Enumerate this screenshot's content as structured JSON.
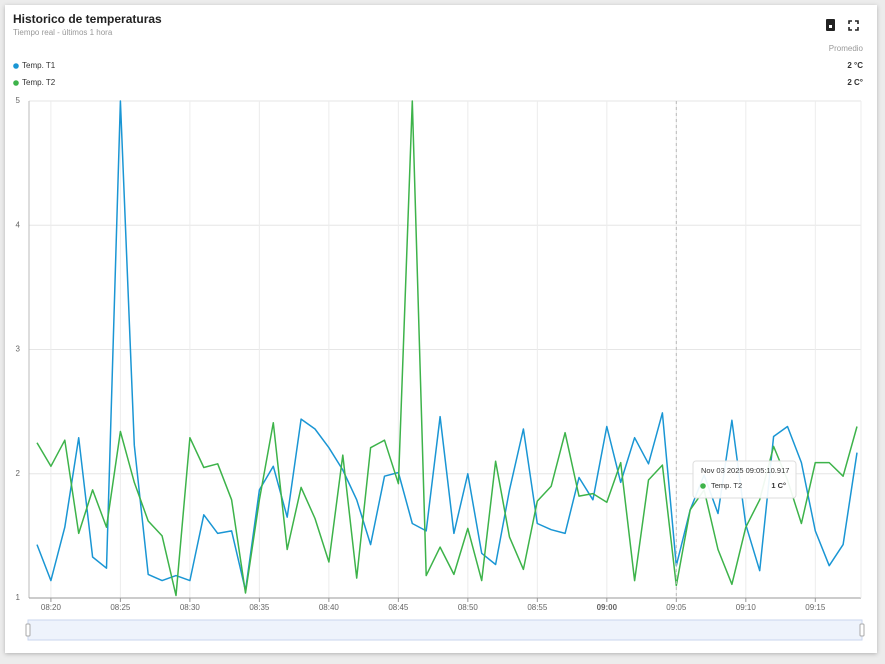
{
  "chart_data": {
    "type": "line",
    "title": "Historico de temperaturas",
    "subtitle": "Tiempo real - últimos 1 hora",
    "legend_header": "Promedio",
    "legend_values": [
      "2 °C",
      "2 C°"
    ],
    "x": [
      "08:19",
      "08:20",
      "08:21",
      "08:22",
      "08:23",
      "08:24",
      "08:25",
      "08:26",
      "08:27",
      "08:28",
      "08:29",
      "08:30",
      "08:31",
      "08:32",
      "08:33",
      "08:34",
      "08:35",
      "08:36",
      "08:37",
      "08:38",
      "08:39",
      "08:40",
      "08:41",
      "08:42",
      "08:43",
      "08:44",
      "08:45",
      "08:46",
      "08:47",
      "08:48",
      "08:49",
      "08:50",
      "08:51",
      "08:52",
      "08:53",
      "08:54",
      "08:55",
      "08:56",
      "08:57",
      "08:58",
      "08:59",
      "09:00",
      "09:01",
      "09:02",
      "09:03",
      "09:04",
      "09:05",
      "09:06",
      "09:07",
      "09:08",
      "09:09",
      "09:10",
      "09:11",
      "09:12",
      "09:13",
      "09:14",
      "09:15",
      "09:16",
      "09:17",
      "09:18"
    ],
    "xlim": [
      "08:19",
      "09:18"
    ],
    "xticks": [
      "08:20",
      "08:25",
      "08:30",
      "08:35",
      "08:40",
      "08:45",
      "08:50",
      "08:55",
      "09:00",
      "09:05",
      "09:10",
      "09:15"
    ],
    "ylim": [
      1,
      5
    ],
    "yticks": [
      1,
      2,
      3,
      4,
      5
    ],
    "grid": true,
    "series": [
      {
        "name": "Temp. T1",
        "color": "#1a96d4",
        "values": [
          1.43,
          1.14,
          1.57,
          2.29,
          1.33,
          1.24,
          5.0,
          2.23,
          1.19,
          1.14,
          1.18,
          1.14,
          1.67,
          1.52,
          1.54,
          1.06,
          1.87,
          2.06,
          1.65,
          2.44,
          2.36,
          2.21,
          2.03,
          1.79,
          1.43,
          1.98,
          2.01,
          1.6,
          1.54,
          2.46,
          1.52,
          2.0,
          1.36,
          1.27,
          1.87,
          2.36,
          1.6,
          1.55,
          1.52,
          1.97,
          1.79,
          2.38,
          1.93,
          2.29,
          2.08,
          2.49,
          1.26,
          1.71,
          1.99,
          1.68,
          2.43,
          1.59,
          1.22,
          2.3,
          2.38,
          2.09,
          1.54,
          1.26,
          1.43,
          2.17
        ]
      },
      {
        "name": "Temp. T2",
        "color": "#3db34a",
        "values": [
          2.25,
          2.06,
          2.27,
          1.52,
          1.87,
          1.57,
          2.34,
          1.93,
          1.62,
          1.5,
          1.02,
          2.29,
          2.05,
          2.08,
          1.79,
          1.04,
          1.79,
          2.41,
          1.39,
          1.89,
          1.64,
          1.29,
          2.15,
          1.16,
          2.21,
          2.27,
          1.92,
          5.0,
          1.18,
          1.41,
          1.19,
          1.56,
          1.14,
          2.1,
          1.49,
          1.23,
          1.78,
          1.9,
          2.33,
          1.82,
          1.84,
          1.77,
          2.09,
          1.14,
          1.95,
          2.07,
          1.1,
          1.71,
          1.87,
          1.39,
          1.11,
          1.57,
          1.79,
          2.22,
          1.95,
          1.6,
          2.09,
          2.09,
          1.98,
          2.38
        ]
      }
    ],
    "tooltip": {
      "time": "Nov 03 2025 09:05:10.917",
      "series": "Temp. T2",
      "value": "1 C°"
    }
  }
}
